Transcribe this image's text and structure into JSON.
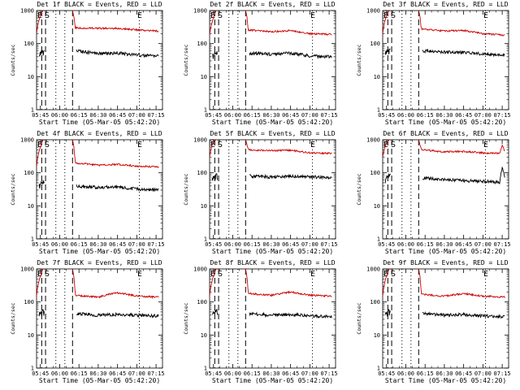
{
  "figure": {
    "common_start_time": "Start Time (05-Mar-05 05:42:20)",
    "ylabel": "Counts/sec",
    "x_tick_labels": [
      "05:45",
      "06:00",
      "06:15",
      "06:30",
      "06:45",
      "07:00",
      "07:15"
    ],
    "y_tick_labels": [
      "1",
      "10",
      "100",
      "1000"
    ],
    "markers": {
      "eclipse_end": "E",
      "saa_start": "S",
      "eclipse_start": "E"
    },
    "colors": {
      "events": "#000000",
      "lld": "#cc0000"
    }
  },
  "chart_data": [
    {
      "type": "line",
      "title": "Det 1f  BLACK = Events, RED = LLD",
      "xlabel": "Start Time (05-Mar-05 05:42:20)",
      "ylabel": "Counts/sec",
      "x_range": [
        "05:42",
        "07:20"
      ],
      "yscale": "log",
      "ylim": [
        1,
        1000
      ],
      "series": [
        {
          "name": "Events",
          "color": "#000000",
          "x": [
            "05:44",
            "05:47",
            "06:10",
            "06:13",
            "06:30",
            "06:45",
            "07:00",
            "07:17"
          ],
          "y": [
            45,
            55,
            0,
            60,
            50,
            52,
            45,
            42
          ]
        },
        {
          "name": "LLD",
          "color": "#cc0000",
          "x": [
            "05:42",
            "05:45",
            "05:47",
            "06:10",
            "06:12",
            "06:30",
            "06:45",
            "07:00",
            "07:17"
          ],
          "y": [
            200,
            700,
            1000,
            1000,
            300,
            290,
            290,
            260,
            240
          ]
        }
      ],
      "vlines_dashed": [
        "05:46",
        "05:49",
        "06:10"
      ],
      "vlines_dotted": [
        "05:57",
        "06:04",
        "07:02"
      ]
    },
    {
      "type": "line",
      "title": "Det 2f  BLACK = Events, RED = LLD",
      "xlabel": "Start Time (05-Mar-05 05:42:20)",
      "ylabel": "Counts/sec",
      "x_range": [
        "05:42",
        "07:20"
      ],
      "yscale": "log",
      "ylim": [
        1,
        1000
      ],
      "series": [
        {
          "name": "Events",
          "color": "#000000",
          "x": [
            "05:44",
            "05:47",
            "06:10",
            "06:13",
            "06:30",
            "06:45",
            "07:00",
            "07:17"
          ],
          "y": [
            40,
            50,
            0,
            52,
            48,
            52,
            42,
            40
          ]
        },
        {
          "name": "LLD",
          "color": "#cc0000",
          "x": [
            "05:42",
            "05:45",
            "05:47",
            "06:10",
            "06:12",
            "06:30",
            "06:45",
            "07:00",
            "07:17"
          ],
          "y": [
            180,
            600,
            1000,
            1000,
            260,
            230,
            250,
            200,
            190
          ]
        }
      ],
      "vlines_dashed": [
        "05:46",
        "05:49",
        "06:10"
      ],
      "vlines_dotted": [
        "05:57",
        "06:04",
        "07:02"
      ]
    },
    {
      "type": "line",
      "title": "Det 3f  BLACK = Events, RED = LLD",
      "xlabel": "Start Time (05-Mar-05 05:42:20)",
      "ylabel": "Counts/sec",
      "x_range": [
        "05:42",
        "07:20"
      ],
      "yscale": "log",
      "ylim": [
        1,
        1000
      ],
      "series": [
        {
          "name": "Events",
          "color": "#000000",
          "x": [
            "05:44",
            "05:47",
            "06:10",
            "06:13",
            "06:30",
            "06:45",
            "07:00",
            "07:17"
          ],
          "y": [
            50,
            60,
            0,
            60,
            55,
            55,
            48,
            45
          ]
        },
        {
          "name": "LLD",
          "color": "#cc0000",
          "x": [
            "05:42",
            "05:45",
            "05:47",
            "06:10",
            "06:12",
            "06:30",
            "06:45",
            "07:00",
            "07:17"
          ],
          "y": [
            200,
            700,
            1000,
            1000,
            280,
            240,
            250,
            200,
            180
          ]
        }
      ],
      "vlines_dashed": [
        "05:46",
        "05:49",
        "06:10"
      ],
      "vlines_dotted": [
        "05:57",
        "06:04",
        "07:02"
      ]
    },
    {
      "type": "line",
      "title": "Det 4f  BLACK = Events, RED = LLD",
      "xlabel": "Start Time (05-Mar-05 05:42:20)",
      "ylabel": "Counts/sec",
      "x_range": [
        "05:42",
        "07:20"
      ],
      "yscale": "log",
      "ylim": [
        1,
        1000
      ],
      "series": [
        {
          "name": "Events",
          "color": "#000000",
          "x": [
            "05:44",
            "05:47",
            "06:10",
            "06:13",
            "06:30",
            "06:45",
            "07:00",
            "07:17"
          ],
          "y": [
            40,
            50,
            0,
            40,
            36,
            38,
            32,
            30
          ]
        },
        {
          "name": "LLD",
          "color": "#cc0000",
          "x": [
            "05:42",
            "05:45",
            "05:47",
            "06:10",
            "06:12",
            "06:30",
            "06:45",
            "07:00",
            "07:17"
          ],
          "y": [
            150,
            600,
            1000,
            1000,
            200,
            170,
            180,
            160,
            150
          ]
        }
      ],
      "vlines_dashed": [
        "05:46",
        "05:49",
        "06:10"
      ],
      "vlines_dotted": [
        "05:57",
        "06:04",
        "07:02"
      ]
    },
    {
      "type": "line",
      "title": "Det 5f  BLACK = Events, RED = LLD",
      "xlabel": "Start Time (05-Mar-05 05:42:20)",
      "ylabel": "Counts/sec",
      "x_range": [
        "05:42",
        "07:20"
      ],
      "yscale": "log",
      "ylim": [
        1,
        1000
      ],
      "series": [
        {
          "name": "Events",
          "color": "#000000",
          "x": [
            "05:44",
            "05:47",
            "06:10",
            "06:13",
            "06:30",
            "06:45",
            "07:00",
            "07:17"
          ],
          "y": [
            60,
            80,
            0,
            80,
            75,
            80,
            75,
            72
          ]
        },
        {
          "name": "LLD",
          "color": "#cc0000",
          "x": [
            "05:42",
            "05:45",
            "05:47",
            "06:10",
            "06:12",
            "06:30",
            "06:45",
            "07:00",
            "07:17"
          ],
          "y": [
            300,
            900,
            1000,
            1000,
            500,
            470,
            480,
            400,
            390
          ]
        }
      ],
      "vlines_dashed": [
        "05:46",
        "05:49",
        "06:10"
      ],
      "vlines_dotted": [
        "05:57",
        "06:04",
        "07:02"
      ]
    },
    {
      "type": "line",
      "title": "Det 6f  BLACK = Events, RED = LLD",
      "xlabel": "Start Time (05-Mar-05 05:42:20)",
      "ylabel": "Counts/sec",
      "x_range": [
        "05:42",
        "07:20"
      ],
      "yscale": "log",
      "ylim": [
        1,
        1000
      ],
      "series": [
        {
          "name": "Events",
          "color": "#000000",
          "x": [
            "05:44",
            "05:47",
            "06:10",
            "06:13",
            "06:30",
            "06:45",
            "07:00",
            "07:13",
            "07:15",
            "07:17"
          ],
          "y": [
            60,
            80,
            0,
            70,
            62,
            58,
            55,
            52,
            140,
            70
          ]
        },
        {
          "name": "LLD",
          "color": "#cc0000",
          "x": [
            "05:42",
            "05:45",
            "05:47",
            "06:10",
            "06:12",
            "06:30",
            "06:45",
            "07:00",
            "07:13",
            "07:15",
            "07:17"
          ],
          "y": [
            300,
            800,
            1000,
            1000,
            500,
            430,
            440,
            400,
            390,
            650,
            450
          ]
        }
      ],
      "vlines_dashed": [
        "05:46",
        "05:49",
        "06:10"
      ],
      "vlines_dotted": [
        "05:57",
        "06:04",
        "07:02"
      ]
    },
    {
      "type": "line",
      "title": "Det 7f  BLACK = Events, RED = LLD",
      "xlabel": "Start Time (05-Mar-05 05:42:20)",
      "ylabel": "Counts/sec",
      "x_range": [
        "05:42",
        "07:20"
      ],
      "yscale": "log",
      "ylim": [
        1,
        1000
      ],
      "series": [
        {
          "name": "Events",
          "color": "#000000",
          "x": [
            "05:44",
            "05:47",
            "06:10",
            "06:13",
            "06:30",
            "06:45",
            "07:00",
            "07:17"
          ],
          "y": [
            40,
            50,
            0,
            45,
            40,
            42,
            40,
            38
          ]
        },
        {
          "name": "LLD",
          "color": "#cc0000",
          "x": [
            "05:42",
            "05:45",
            "05:47",
            "06:10",
            "06:12",
            "06:30",
            "06:45",
            "07:00",
            "07:17"
          ],
          "y": [
            150,
            600,
            1000,
            1000,
            160,
            140,
            190,
            150,
            140
          ]
        }
      ],
      "vlines_dashed": [
        "05:46",
        "05:49",
        "06:10"
      ],
      "vlines_dotted": [
        "05:57",
        "06:04",
        "07:02"
      ]
    },
    {
      "type": "line",
      "title": "Det 8f  BLACK = Events, RED = LLD",
      "xlabel": "Start Time (05-Mar-05 05:42:20)",
      "ylabel": "Counts/sec",
      "x_range": [
        "05:42",
        "07:20"
      ],
      "yscale": "log",
      "ylim": [
        1,
        1000
      ],
      "series": [
        {
          "name": "Events",
          "color": "#000000",
          "x": [
            "05:44",
            "05:47",
            "06:10",
            "06:13",
            "06:30",
            "06:45",
            "07:00",
            "07:17"
          ],
          "y": [
            40,
            50,
            0,
            45,
            40,
            42,
            38,
            36
          ]
        },
        {
          "name": "LLD",
          "color": "#cc0000",
          "x": [
            "05:42",
            "05:45",
            "05:47",
            "06:10",
            "06:12",
            "06:30",
            "06:45",
            "07:00",
            "07:17"
          ],
          "y": [
            150,
            600,
            1000,
            1000,
            180,
            160,
            200,
            160,
            150
          ]
        }
      ],
      "vlines_dashed": [
        "05:46",
        "05:49",
        "06:10"
      ],
      "vlines_dotted": [
        "05:57",
        "06:04",
        "07:02"
      ]
    },
    {
      "type": "line",
      "title": "Det 9f  BLACK = Events, RED = LLD",
      "xlabel": "Start Time (05-Mar-05 05:42:20)",
      "ylabel": "Counts/sec",
      "x_range": [
        "05:42",
        "07:20"
      ],
      "yscale": "log",
      "ylim": [
        1,
        1000
      ],
      "series": [
        {
          "name": "Events",
          "color": "#000000",
          "x": [
            "05:44",
            "05:47",
            "06:10",
            "06:13",
            "06:30",
            "06:45",
            "07:00",
            "07:17"
          ],
          "y": [
            40,
            50,
            0,
            45,
            40,
            42,
            38,
            36
          ]
        },
        {
          "name": "LLD",
          "color": "#cc0000",
          "x": [
            "05:42",
            "05:45",
            "05:47",
            "06:10",
            "06:12",
            "06:30",
            "06:45",
            "07:00",
            "07:17"
          ],
          "y": [
            150,
            600,
            1000,
            1000,
            170,
            150,
            180,
            150,
            140
          ]
        }
      ],
      "vlines_dashed": [
        "05:46",
        "05:49",
        "06:10"
      ],
      "vlines_dotted": [
        "05:57",
        "06:04",
        "07:02"
      ]
    }
  ]
}
